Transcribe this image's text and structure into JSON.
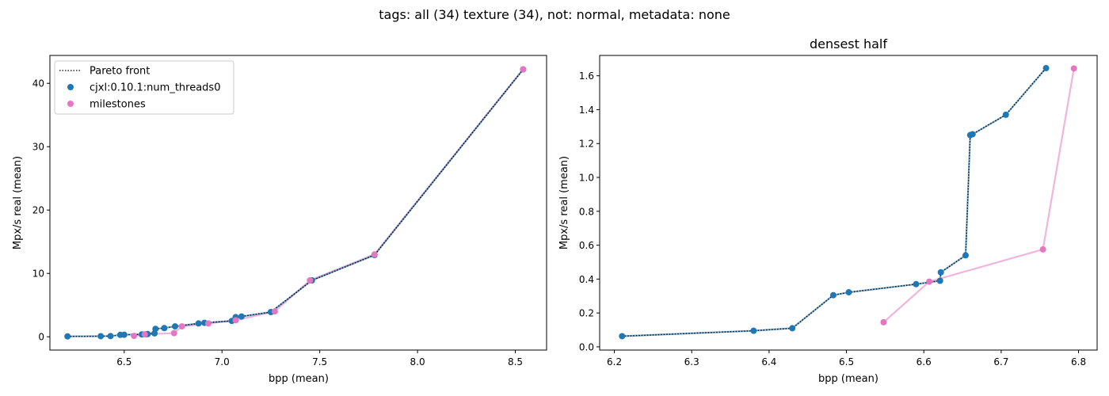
{
  "suptitle": "tags: all (34) texture (34), not: normal, metadata: none",
  "colors": {
    "blue": "#1f77b4",
    "pink": "#e377c2",
    "front": "#000000"
  },
  "chart_data": [
    {
      "type": "scatter",
      "title": "",
      "xlabel": "bpp (mean)",
      "ylabel": "Mpx/s real (mean)",
      "xlim": [
        6.12,
        8.66
      ],
      "ylim": [
        -2.1,
        44.4
      ],
      "xticks": [
        6.5,
        7.0,
        7.5,
        8.0,
        8.5
      ],
      "xtick_labels": [
        "6.5",
        "7.0",
        "7.5",
        "8.0",
        "8.5"
      ],
      "yticks": [
        0,
        10,
        20,
        30,
        40
      ],
      "ytick_labels": [
        "0",
        "10",
        "20",
        "30",
        "40"
      ],
      "legend": {
        "position": "upper left",
        "entries": [
          {
            "label": "Pareto front",
            "kind": "dotted-line"
          },
          {
            "label": "cjxl:0.10.1:num_threads0",
            "kind": "marker",
            "color": "#1f77b4"
          },
          {
            "label": "milestones",
            "kind": "marker",
            "color": "#e377c2"
          }
        ]
      },
      "series": [
        {
          "name": "cjxl:0.10.1:num_threads0",
          "color": "#1f77b4",
          "x": [
            6.21,
            6.38,
            6.43,
            6.48,
            6.5,
            6.59,
            6.61,
            6.62,
            6.655,
            6.66,
            6.705,
            6.76,
            6.88,
            6.91,
            7.05,
            7.07,
            7.1,
            7.25,
            7.46,
            7.78,
            8.54
          ],
          "y": [
            0.06,
            0.09,
            0.11,
            0.3,
            0.32,
            0.37,
            0.38,
            0.43,
            0.54,
            1.25,
            1.37,
            1.64,
            2.1,
            2.2,
            2.5,
            3.1,
            3.2,
            3.9,
            8.9,
            12.9,
            42.2
          ]
        },
        {
          "name": "milestones",
          "color": "#e377c2",
          "x": [
            6.55,
            6.605,
            6.755,
            6.795,
            6.93,
            7.07,
            7.27,
            7.45,
            7.78,
            8.54
          ],
          "y": [
            0.14,
            0.38,
            0.57,
            1.64,
            2.1,
            2.6,
            4.0,
            8.9,
            13.0,
            42.2
          ]
        }
      ],
      "pareto_front": {
        "x": [
          6.21,
          6.38,
          6.43,
          6.48,
          6.5,
          6.59,
          6.61,
          6.62,
          6.655,
          6.66,
          6.705,
          6.76,
          6.88,
          6.91,
          7.05,
          7.07,
          7.1,
          7.25,
          7.46,
          7.78,
          8.54
        ],
        "y": [
          0.06,
          0.09,
          0.11,
          0.3,
          0.32,
          0.37,
          0.38,
          0.43,
          0.54,
          1.25,
          1.37,
          1.64,
          2.1,
          2.2,
          2.5,
          3.1,
          3.2,
          3.9,
          8.9,
          12.9,
          42.2
        ]
      }
    },
    {
      "type": "scatter",
      "title": "densest half",
      "xlabel": "bpp (mean)",
      "ylabel": "Mpx/s real (mean)",
      "xlim": [
        6.181,
        6.824
      ],
      "ylim": [
        -0.019,
        1.72
      ],
      "xticks": [
        6.2,
        6.3,
        6.4,
        6.5,
        6.6,
        6.7,
        6.8
      ],
      "xtick_labels": [
        "6.2",
        "6.3",
        "6.4",
        "6.5",
        "6.6",
        "6.7",
        "6.8"
      ],
      "yticks": [
        0.0,
        0.2,
        0.4,
        0.6,
        0.8,
        1.0,
        1.2,
        1.4,
        1.6
      ],
      "ytick_labels": [
        "0.0",
        "0.2",
        "0.4",
        "0.6",
        "0.8",
        "1.0",
        "1.2",
        "1.4",
        "1.6"
      ],
      "series": [
        {
          "name": "cjxl:0.10.1:num_threads0",
          "color": "#1f77b4",
          "x": [
            6.21,
            6.38,
            6.43,
            6.483,
            6.503,
            6.59,
            6.621,
            6.622,
            6.654,
            6.66,
            6.663,
            6.706,
            6.758
          ],
          "y": [
            0.063,
            0.095,
            0.11,
            0.305,
            0.322,
            0.37,
            0.39,
            0.44,
            0.54,
            1.25,
            1.255,
            1.37,
            1.645
          ]
        },
        {
          "name": "milestones",
          "color": "#e377c2",
          "x": [
            6.548,
            6.607,
            6.754,
            6.794
          ],
          "y": [
            0.145,
            0.385,
            0.575,
            1.643
          ]
        }
      ],
      "pareto_front": {
        "x": [
          6.21,
          6.38,
          6.43,
          6.483,
          6.503,
          6.59,
          6.621,
          6.622,
          6.654,
          6.66,
          6.663,
          6.706,
          6.758
        ],
        "y": [
          0.063,
          0.095,
          0.11,
          0.305,
          0.322,
          0.37,
          0.39,
          0.44,
          0.54,
          1.25,
          1.255,
          1.37,
          1.645
        ]
      }
    }
  ]
}
